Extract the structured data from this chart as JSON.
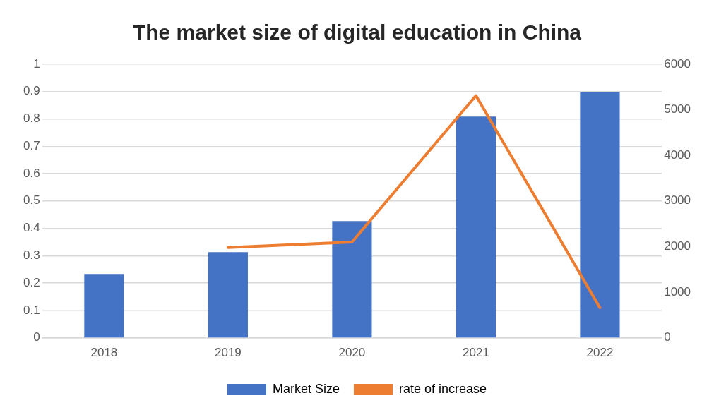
{
  "chart_data": {
    "type": "bar",
    "title": "The market size of digital education in China",
    "categories": [
      "2018",
      "2019",
      "2020",
      "2021",
      "2022"
    ],
    "series": [
      {
        "name": "Market Size",
        "axis": "y2",
        "color": "#4472c4",
        "values": [
          1400,
          1880,
          2560,
          4850,
          5390
        ]
      },
      {
        "name": "rate of increase",
        "type": "line",
        "axis": "y",
        "color": "#ed7d31",
        "values": [
          null,
          0.33,
          0.35,
          0.885,
          0.11
        ]
      }
    ],
    "ylim": [
      0,
      1
    ],
    "yticks": [
      0,
      0.1,
      0.2,
      0.3,
      0.4,
      0.5,
      0.6,
      0.7,
      0.8,
      0.9,
      1
    ],
    "y2lim": [
      0,
      6000
    ],
    "y2ticks": [
      0,
      1000,
      2000,
      3000,
      4000,
      5000,
      6000
    ],
    "grid": "y",
    "legend": "bottom",
    "marker": "none"
  }
}
